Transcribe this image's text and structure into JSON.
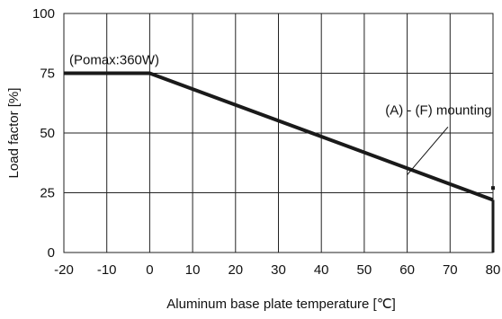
{
  "chart_data": {
    "type": "line",
    "title": "",
    "xlabel": "Aluminum base plate temperature [℃]",
    "ylabel": "Load factor [%]",
    "xlim": [
      -20,
      80
    ],
    "ylim": [
      0,
      100
    ],
    "xticks": [
      -20,
      -10,
      0,
      10,
      20,
      30,
      40,
      50,
      60,
      70,
      80
    ],
    "yticks": [
      0,
      25,
      50,
      75,
      100
    ],
    "grid": true,
    "series": [
      {
        "name": "(A) - (F) mounting",
        "x": [
          -20,
          0,
          80
        ],
        "y": [
          75,
          75,
          22
        ],
        "color": "#1a1a1a"
      }
    ],
    "annotations": [
      {
        "text": "(Pomax:360W)"
      },
      {
        "text": "(A) - (F) mounting"
      }
    ],
    "colors": {
      "line": "#1a1a1a",
      "grid": "#222222",
      "frame": "#222222"
    }
  }
}
